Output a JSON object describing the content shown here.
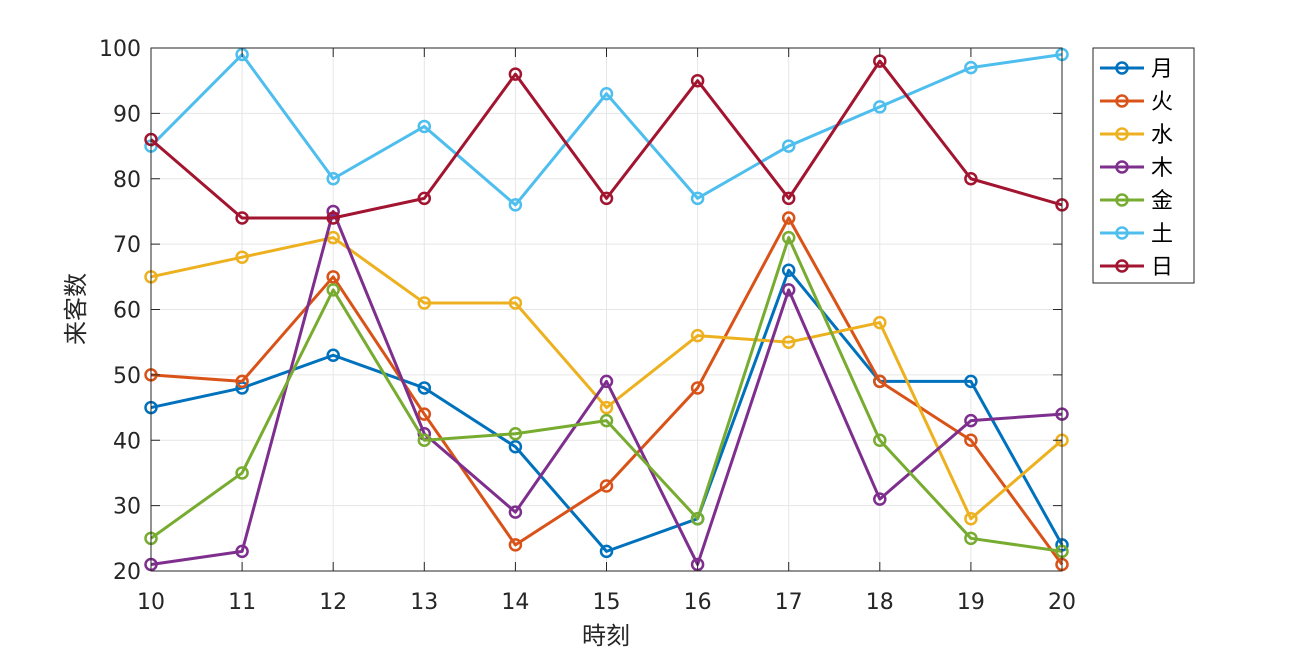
{
  "chart_data": {
    "type": "line",
    "xlabel": "時刻",
    "ylabel": "来客数",
    "x": [
      10,
      11,
      12,
      13,
      14,
      15,
      16,
      17,
      18,
      19,
      20
    ],
    "xlim": [
      10,
      20
    ],
    "ylim": [
      20,
      100
    ],
    "xticks": [
      10,
      11,
      12,
      13,
      14,
      15,
      16,
      17,
      18,
      19,
      20
    ],
    "yticks": [
      20,
      30,
      40,
      50,
      60,
      70,
      80,
      90,
      100
    ],
    "grid": true,
    "legend_position": "top-right",
    "series": [
      {
        "name": "月",
        "color": "#0072BD",
        "values": [
          45,
          48,
          53,
          48,
          39,
          23,
          28,
          66,
          49,
          49,
          24
        ]
      },
      {
        "name": "火",
        "color": "#D95319",
        "values": [
          50,
          49,
          65,
          44,
          24,
          33,
          48,
          74,
          49,
          40,
          21
        ]
      },
      {
        "name": "水",
        "color": "#EDB120",
        "values": [
          65,
          68,
          71,
          61,
          61,
          45,
          56,
          55,
          58,
          28,
          40
        ]
      },
      {
        "name": "木",
        "color": "#7E2F8E",
        "values": [
          21,
          23,
          75,
          41,
          29,
          49,
          21,
          63,
          31,
          43,
          44
        ]
      },
      {
        "name": "金",
        "color": "#77AC30",
        "values": [
          25,
          35,
          63,
          40,
          41,
          43,
          28,
          71,
          40,
          25,
          23
        ]
      },
      {
        "name": "土",
        "color": "#4DBEEE",
        "values": [
          85,
          99,
          80,
          88,
          76,
          93,
          77,
          85,
          91,
          97,
          99
        ]
      },
      {
        "name": "日",
        "color": "#A2142F",
        "values": [
          86,
          74,
          74,
          77,
          96,
          77,
          95,
          77,
          98,
          80,
          76
        ]
      }
    ]
  }
}
